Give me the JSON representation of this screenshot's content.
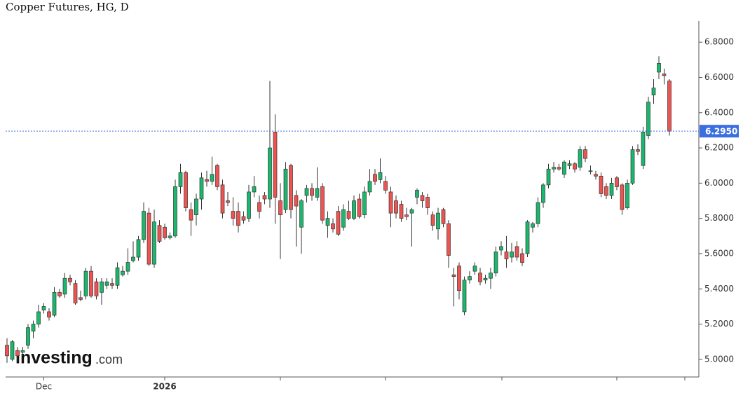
{
  "chart_data": {
    "type": "candlestick",
    "title": "Copper Futures, HG, D",
    "watermark": [
      "Investing",
      ".com"
    ],
    "up_color": "#1ab86c",
    "down_color": "#ef5350",
    "outline_color": "#333333",
    "ylim": [
      4.9,
      6.92
    ],
    "yticks": [
      {
        "value": 5.0,
        "label": "5.0000"
      },
      {
        "value": 5.2,
        "label": "5.2000"
      },
      {
        "value": 5.4,
        "label": "5.4000"
      },
      {
        "value": 5.6,
        "label": "5.6000"
      },
      {
        "value": 5.8,
        "label": "5.8000"
      },
      {
        "value": 6.0,
        "label": "6.0000"
      },
      {
        "value": 6.2,
        "label": "6.2000"
      },
      {
        "value": 6.4,
        "label": "6.4000"
      },
      {
        "value": 6.6,
        "label": "6.6000"
      },
      {
        "value": 6.8,
        "label": "6.8000"
      }
    ],
    "current_price": {
      "value": 6.295,
      "label": "6.2950",
      "color": "#3b6ee0"
    },
    "categories": [
      null,
      null,
      null,
      null,
      null,
      null,
      null,
      "Dec",
      null,
      null,
      null,
      null,
      null,
      null,
      null,
      null,
      null,
      null,
      null,
      null,
      null,
      null,
      null,
      null,
      null,
      null,
      null,
      null,
      null,
      null,
      "2026",
      null,
      null,
      null,
      null,
      null,
      null,
      null,
      null,
      null,
      null,
      null,
      null,
      null,
      null,
      null,
      null,
      null,
      null,
      null,
      null,
      null,
      null,
      null,
      null,
      null,
      null,
      null,
      null,
      null,
      null,
      null,
      null,
      null,
      null,
      null,
      null,
      null,
      null,
      null,
      null,
      null,
      null,
      null,
      null,
      null,
      null,
      null,
      null,
      null,
      null,
      null,
      null,
      null,
      null,
      null,
      null,
      null,
      null,
      null,
      null,
      null,
      null,
      null,
      null,
      null,
      null,
      null,
      null,
      null,
      null,
      null,
      null,
      null,
      null,
      null,
      null,
      null,
      null,
      null,
      null,
      null,
      null,
      null,
      null,
      null,
      null,
      null,
      null,
      null,
      null,
      null,
      null,
      null,
      null,
      null,
      null
    ],
    "ohlc": [
      [
        5.08,
        5.12,
        4.98,
        5.02
      ],
      [
        5.0,
        5.11,
        4.99,
        5.1
      ],
      [
        5.05,
        5.07,
        4.99,
        5.02
      ],
      [
        5.04,
        5.07,
        5.02,
        5.05
      ],
      [
        5.08,
        5.2,
        5.06,
        5.18
      ],
      [
        5.16,
        5.22,
        5.12,
        5.2
      ],
      [
        5.2,
        5.31,
        5.18,
        5.27
      ],
      [
        5.28,
        5.32,
        5.26,
        5.3
      ],
      [
        5.27,
        5.29,
        5.22,
        5.24
      ],
      [
        5.25,
        5.41,
        5.24,
        5.38
      ],
      [
        5.38,
        5.4,
        5.35,
        5.36
      ],
      [
        5.37,
        5.49,
        5.35,
        5.46
      ],
      [
        5.46,
        5.48,
        5.42,
        5.44
      ],
      [
        5.43,
        5.45,
        5.31,
        5.32
      ],
      [
        5.35,
        5.39,
        5.33,
        5.34
      ],
      [
        5.36,
        5.52,
        5.34,
        5.5
      ],
      [
        5.5,
        5.53,
        5.35,
        5.36
      ],
      [
        5.44,
        5.46,
        5.34,
        5.36
      ],
      [
        5.38,
        5.46,
        5.31,
        5.44
      ],
      [
        5.42,
        5.46,
        5.4,
        5.44
      ],
      [
        5.43,
        5.46,
        5.4,
        5.42
      ],
      [
        5.42,
        5.55,
        5.4,
        5.52
      ],
      [
        5.48,
        5.53,
        5.47,
        5.5
      ],
      [
        5.5,
        5.63,
        5.48,
        5.55
      ],
      [
        5.56,
        5.67,
        5.55,
        5.58
      ],
      [
        5.58,
        5.7,
        5.56,
        5.68
      ],
      [
        5.68,
        5.89,
        5.66,
        5.84
      ],
      [
        5.83,
        5.86,
        5.53,
        5.54
      ],
      [
        5.54,
        5.85,
        5.52,
        5.78
      ],
      [
        5.76,
        5.79,
        5.66,
        5.67
      ],
      [
        5.75,
        5.77,
        5.68,
        5.69
      ],
      [
        5.69,
        5.72,
        5.68,
        5.7
      ],
      [
        5.7,
        6.02,
        5.69,
        5.98
      ],
      [
        5.98,
        6.11,
        5.94,
        6.06
      ],
      [
        6.06,
        6.07,
        5.84,
        5.86
      ],
      [
        5.85,
        5.89,
        5.7,
        5.79
      ],
      [
        5.82,
        5.94,
        5.76,
        5.91
      ],
      [
        5.91,
        6.06,
        5.85,
        6.03
      ],
      [
        6.02,
        6.07,
        5.98,
        6.01
      ],
      [
        6.01,
        6.15,
        5.99,
        6.05
      ],
      [
        6.1,
        6.11,
        5.96,
        5.98
      ],
      [
        5.99,
        6.02,
        5.8,
        5.83
      ],
      [
        5.9,
        5.95,
        5.87,
        5.89
      ],
      [
        5.84,
        5.92,
        5.76,
        5.8
      ],
      [
        5.84,
        5.89,
        5.72,
        5.76
      ],
      [
        5.81,
        5.84,
        5.77,
        5.79
      ],
      [
        5.8,
        5.99,
        5.78,
        5.95
      ],
      [
        5.95,
        6.04,
        5.92,
        5.98
      ],
      [
        5.89,
        5.93,
        5.8,
        5.84
      ],
      [
        5.93,
        5.95,
        5.88,
        5.91
      ],
      [
        5.91,
        6.58,
        5.86,
        6.2
      ],
      [
        6.29,
        6.39,
        5.77,
        5.92
      ],
      [
        5.9,
        6.0,
        5.57,
        5.82
      ],
      [
        5.85,
        6.12,
        5.83,
        6.08
      ],
      [
        6.1,
        6.11,
        5.8,
        5.85
      ],
      [
        5.93,
        5.96,
        5.64,
        5.87
      ],
      [
        5.75,
        5.91,
        5.6,
        5.9
      ],
      [
        5.93,
        5.99,
        5.89,
        5.97
      ],
      [
        5.97,
        6.0,
        5.9,
        5.93
      ],
      [
        5.92,
        6.09,
        5.9,
        5.97
      ],
      [
        5.98,
        6.0,
        5.77,
        5.79
      ],
      [
        5.76,
        5.84,
        5.69,
        5.8
      ],
      [
        5.77,
        5.8,
        5.72,
        5.74
      ],
      [
        5.84,
        5.87,
        5.7,
        5.71
      ],
      [
        5.75,
        5.88,
        5.73,
        5.85
      ],
      [
        5.84,
        5.9,
        5.79,
        5.8
      ],
      [
        5.8,
        5.93,
        5.79,
        5.9
      ],
      [
        5.91,
        5.94,
        5.8,
        5.81
      ],
      [
        5.82,
        5.98,
        5.8,
        5.95
      ],
      [
        5.95,
        6.08,
        5.93,
        6.01
      ],
      [
        6.05,
        6.08,
        5.99,
        6.01
      ],
      [
        6.02,
        6.14,
        6.0,
        6.06
      ],
      [
        6.01,
        6.04,
        5.94,
        5.96
      ],
      [
        5.95,
        5.98,
        5.75,
        5.83
      ],
      [
        5.9,
        5.93,
        5.8,
        5.83
      ],
      [
        5.88,
        5.9,
        5.78,
        5.8
      ],
      [
        5.82,
        5.86,
        5.79,
        5.81
      ],
      [
        5.83,
        5.86,
        5.64,
        5.85
      ],
      [
        5.92,
        5.97,
        5.88,
        5.96
      ],
      [
        5.93,
        5.95,
        5.86,
        5.9
      ],
      [
        5.92,
        5.94,
        5.82,
        5.86
      ],
      [
        5.82,
        5.84,
        5.73,
        5.76
      ],
      [
        5.74,
        5.86,
        5.68,
        5.83
      ],
      [
        5.85,
        5.86,
        5.75,
        5.77
      ],
      [
        5.77,
        5.79,
        5.52,
        5.59
      ],
      [
        5.48,
        5.52,
        5.3,
        5.47
      ],
      [
        5.53,
        5.55,
        5.34,
        5.39
      ],
      [
        5.27,
        5.47,
        5.25,
        5.45
      ],
      [
        5.45,
        5.5,
        5.43,
        5.47
      ],
      [
        5.5,
        5.55,
        5.48,
        5.53
      ],
      [
        5.49,
        5.52,
        5.42,
        5.44
      ],
      [
        5.45,
        5.48,
        5.43,
        5.46
      ],
      [
        5.46,
        5.52,
        5.4,
        5.49
      ],
      [
        5.49,
        5.64,
        5.47,
        5.61
      ],
      [
        5.62,
        5.67,
        5.59,
        5.64
      ],
      [
        5.61,
        5.7,
        5.52,
        5.57
      ],
      [
        5.58,
        5.66,
        5.55,
        5.61
      ],
      [
        5.64,
        5.67,
        5.56,
        5.58
      ],
      [
        5.6,
        5.63,
        5.53,
        5.55
      ],
      [
        5.6,
        5.79,
        5.58,
        5.78
      ],
      [
        5.75,
        5.78,
        5.72,
        5.77
      ],
      [
        5.77,
        5.92,
        5.75,
        5.89
      ],
      [
        5.89,
        6.0,
        5.86,
        5.99
      ],
      [
        5.99,
        6.11,
        5.97,
        6.08
      ],
      [
        6.08,
        6.12,
        6.06,
        6.09
      ],
      [
        6.09,
        6.11,
        6.07,
        6.08
      ],
      [
        6.05,
        6.13,
        6.03,
        6.12
      ],
      [
        6.1,
        6.13,
        6.08,
        6.11
      ],
      [
        6.11,
        6.12,
        6.06,
        6.08
      ],
      [
        6.09,
        6.21,
        6.07,
        6.19
      ],
      [
        6.19,
        6.21,
        6.12,
        6.14
      ],
      [
        6.07,
        6.1,
        6.05,
        6.07
      ],
      [
        6.05,
        6.07,
        6.02,
        6.04
      ],
      [
        6.04,
        6.06,
        5.92,
        5.94
      ],
      [
        5.98,
        6.0,
        5.91,
        5.93
      ],
      [
        5.93,
        6.03,
        5.91,
        6.0
      ],
      [
        6.03,
        6.04,
        5.96,
        5.98
      ],
      [
        5.99,
        6.0,
        5.82,
        5.85
      ],
      [
        5.86,
        6.02,
        5.85,
        6.0
      ],
      [
        6.0,
        6.21,
        5.99,
        6.19
      ],
      [
        6.19,
        6.22,
        6.16,
        6.18
      ],
      [
        6.1,
        6.32,
        6.08,
        6.29
      ],
      [
        6.27,
        6.49,
        6.25,
        6.46
      ],
      [
        6.5,
        6.59,
        6.45,
        6.54
      ],
      [
        6.63,
        6.72,
        6.59,
        6.68
      ],
      [
        6.62,
        6.65,
        6.56,
        6.61
      ],
      [
        6.58,
        6.59,
        6.27,
        6.295
      ]
    ]
  }
}
